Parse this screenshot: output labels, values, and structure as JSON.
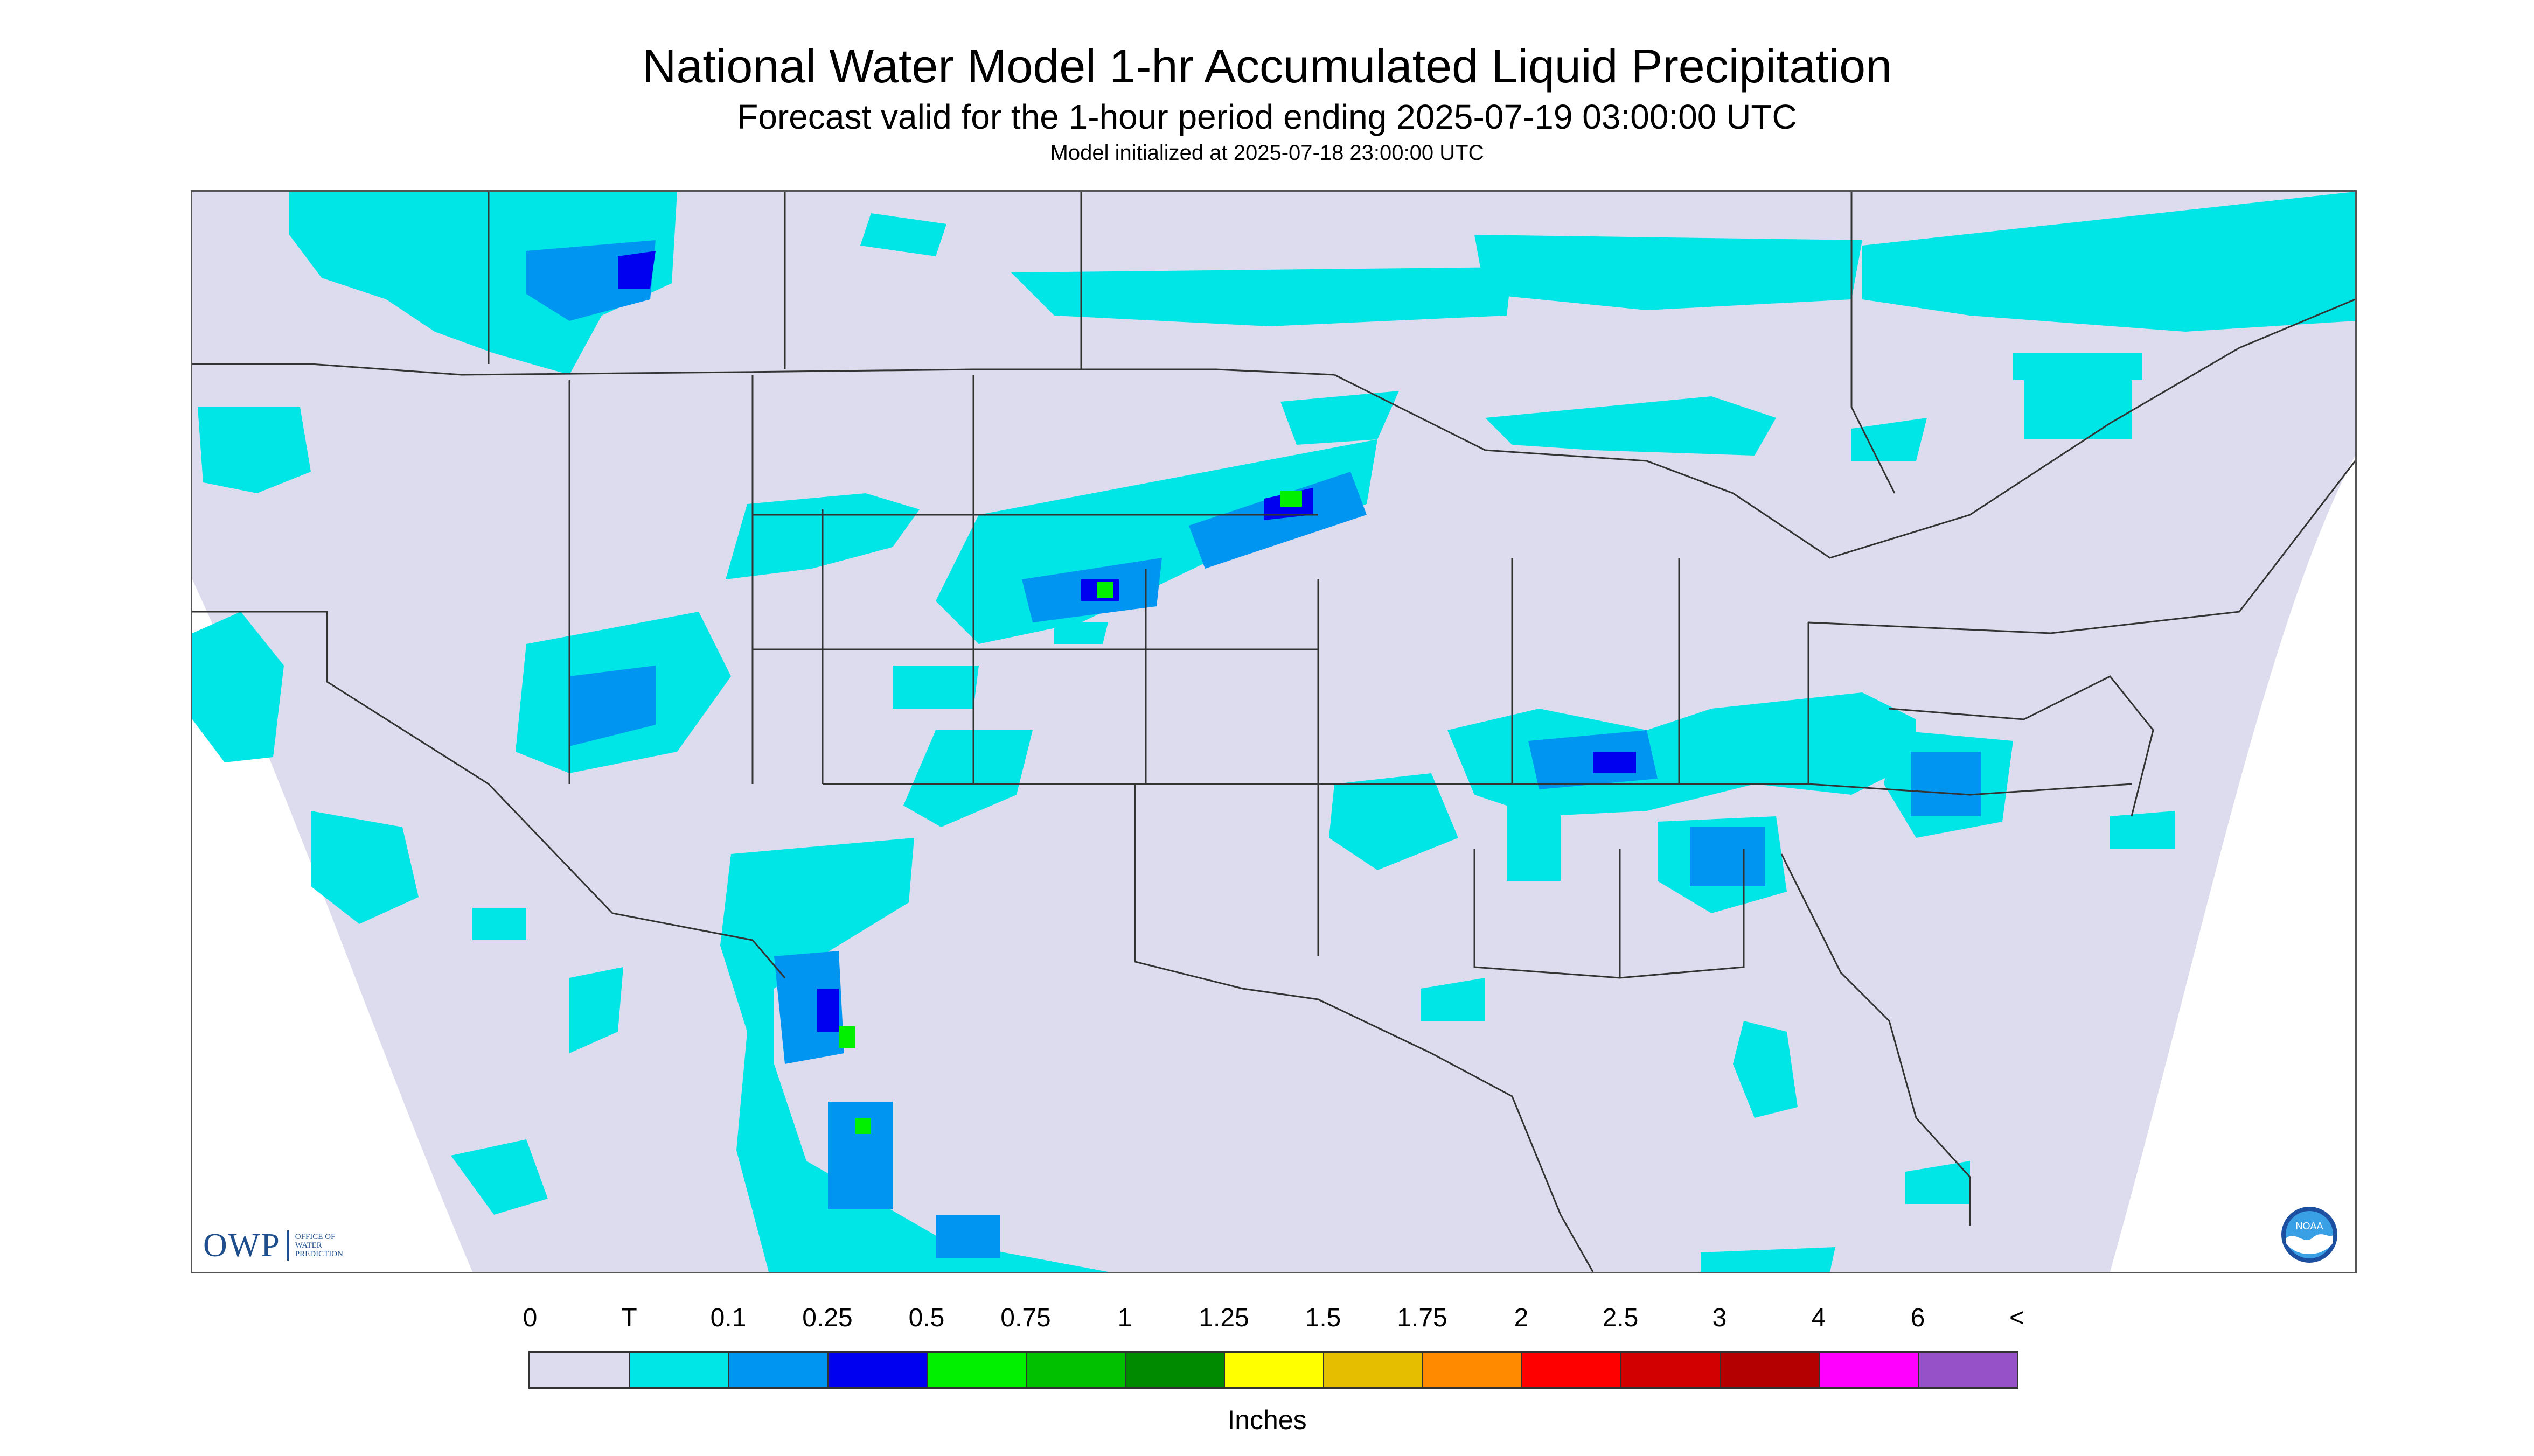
{
  "header": {
    "title": "National Water Model 1-hr Accumulated Liquid Precipitation",
    "subtitle": "Forecast valid for the 1-hour period ending 2025-07-19 03:00:00 UTC",
    "init": "Model initialized at 2025-07-18 23:00:00 UTC"
  },
  "logos": {
    "owp_big": "OWP",
    "owp_small_1": "OFFICE OF",
    "owp_small_2": "WATER",
    "owp_small_3": "PREDICTION",
    "noaa": "NOAA"
  },
  "legend": {
    "labels": [
      "0",
      "T",
      "0.1",
      "0.25",
      "0.5",
      "0.75",
      "1",
      "1.25",
      "1.5",
      "1.75",
      "2",
      "2.5",
      "3",
      "4",
      "6",
      "<"
    ],
    "colors": [
      "#dcdcee",
      "#00e5e5",
      "#0095f0",
      "#0000f0",
      "#00f000",
      "#00c000",
      "#008a00",
      "#ffff00",
      "#e5be00",
      "#ff8a00",
      "#ff0000",
      "#d20000",
      "#b40000",
      "#ff00ff",
      "#9650c8"
    ],
    "units": "Inches"
  },
  "colors": {
    "domain": "#dcdcee",
    "trace": "#00e5e5",
    "light": "#0095f0",
    "moderate": "#0000f0",
    "heavy": "#00f000",
    "boundary": "#333333"
  }
}
